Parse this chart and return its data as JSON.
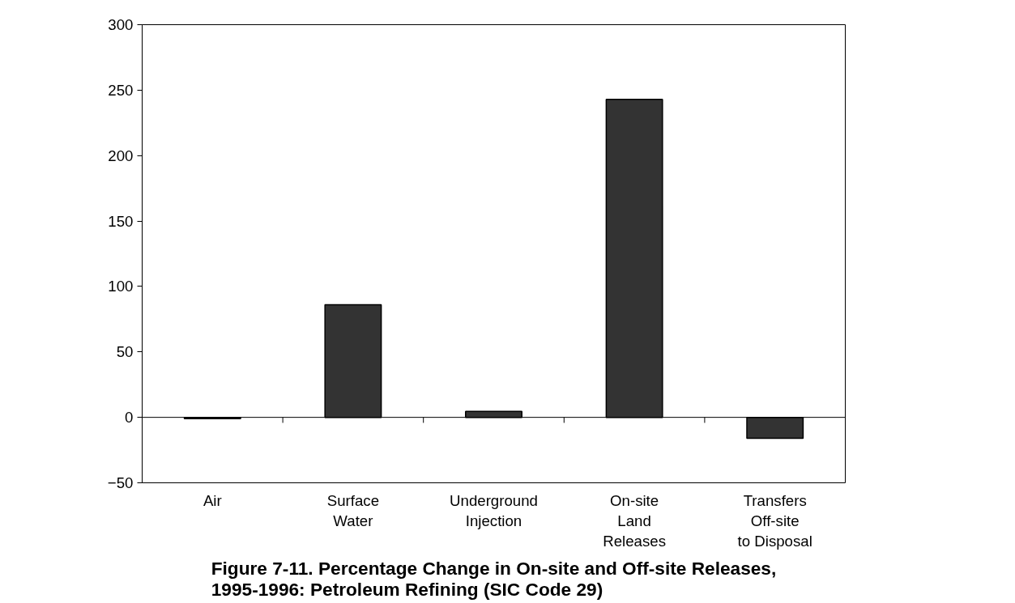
{
  "chart_data": {
    "type": "bar",
    "title": "Figure 7-11. Percentage Change in On-site and Off-site Releases,\n1995-1996: Petroleum Refining (SIC Code 29)",
    "categories": [
      "Air",
      "Surface\nWater",
      "Underground\nInjection",
      "On-site\nLand\nReleases",
      "Transfers\nOff-site\nto Disposal"
    ],
    "values": [
      -1,
      86,
      4.5,
      243,
      -16
    ],
    "color": "#333333",
    "ylim": [
      -50,
      300
    ],
    "yticks": [
      -50,
      0,
      50,
      100,
      150,
      200,
      250,
      300
    ],
    "grid": false,
    "ref_lines": [
      {
        "axis": "y",
        "value": 0
      }
    ]
  }
}
